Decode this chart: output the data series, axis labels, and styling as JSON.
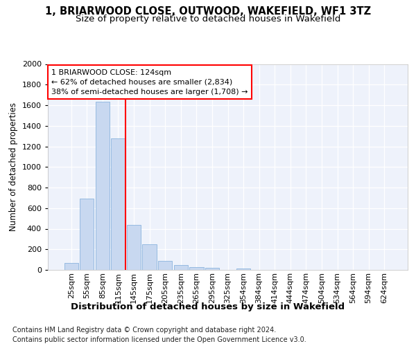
{
  "title": "1, BRIARWOOD CLOSE, OUTWOOD, WAKEFIELD, WF1 3TZ",
  "subtitle": "Size of property relative to detached houses in Wakefield",
  "xlabel": "Distribution of detached houses by size in Wakefield",
  "ylabel": "Number of detached properties",
  "categories": [
    "25sqm",
    "55sqm",
    "85sqm",
    "115sqm",
    "145sqm",
    "175sqm",
    "205sqm",
    "235sqm",
    "265sqm",
    "295sqm",
    "325sqm",
    "354sqm",
    "384sqm",
    "414sqm",
    "444sqm",
    "474sqm",
    "504sqm",
    "534sqm",
    "564sqm",
    "594sqm",
    "624sqm"
  ],
  "values": [
    65,
    695,
    1635,
    1280,
    435,
    250,
    85,
    50,
    30,
    20,
    0,
    15,
    0,
    0,
    0,
    0,
    0,
    0,
    0,
    0,
    0
  ],
  "bar_color": "#c8d8f0",
  "bar_edge_color": "#8ab4de",
  "vline_x_index": 3,
  "annotation_text": "1 BRIARWOOD CLOSE: 124sqm\n← 62% of detached houses are smaller (2,834)\n38% of semi-detached houses are larger (1,708) →",
  "annotation_box_color": "white",
  "annotation_box_edge_color": "red",
  "vline_color": "red",
  "ylim": [
    0,
    2000
  ],
  "yticks": [
    0,
    200,
    400,
    600,
    800,
    1000,
    1200,
    1400,
    1600,
    1800,
    2000
  ],
  "footer_text": "Contains HM Land Registry data © Crown copyright and database right 2024.\nContains public sector information licensed under the Open Government Licence v3.0.",
  "background_color": "#eef2fb",
  "grid_color": "white",
  "title_fontsize": 10.5,
  "subtitle_fontsize": 9.5,
  "xlabel_fontsize": 9.5,
  "ylabel_fontsize": 8.5,
  "tick_fontsize": 8,
  "annotation_fontsize": 8,
  "footer_fontsize": 7
}
